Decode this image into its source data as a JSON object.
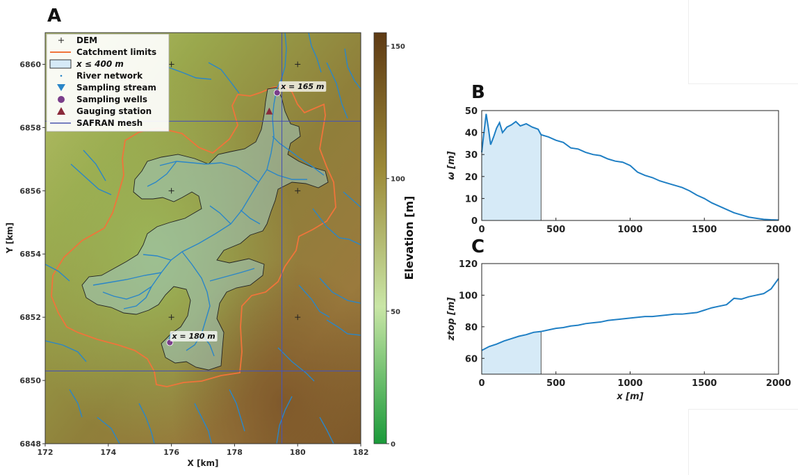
{
  "panels": {
    "a": "A",
    "b": "B",
    "c": "C"
  },
  "colors": {
    "catchment": "#f0743a",
    "river": "#2a86c8",
    "subcatch_fill": "#9fc6c0",
    "mesh": "#4a55b0",
    "wells": "#7a3e8a",
    "gauge": "#8a2a3a",
    "line": "#1f7fc4",
    "shade": "#d6eaf7"
  },
  "map": {
    "xlabel": "X [km]",
    "ylabel": "Y [km]",
    "xlim": [
      172,
      182
    ],
    "ylim": [
      6848,
      6861
    ],
    "xticks": [
      "172",
      "174",
      "176",
      "178",
      "180",
      "182"
    ],
    "yticks": [
      "6848",
      "6850",
      "6852",
      "6854",
      "6856",
      "6858",
      "6860"
    ],
    "legend": [
      {
        "label": "DEM",
        "icon": "plus-icon"
      },
      {
        "label": "Catchment limits",
        "icon": "orange-line-icon"
      },
      {
        "label": "x ≤ 400 m",
        "icon": "blue-box-icon"
      },
      {
        "label": "River network",
        "icon": "dot-icon"
      },
      {
        "label": "Sampling stream",
        "icon": "triangle-down-icon"
      },
      {
        "label": "Sampling wells",
        "icon": "circle-icon"
      },
      {
        "label": "Gauging station",
        "icon": "triangle-up-icon"
      },
      {
        "label": "SAFRAN mesh",
        "icon": "purple-line-icon"
      }
    ],
    "annotations": [
      {
        "text": "x = 165 m",
        "x": 179.45,
        "y": 6859.2
      },
      {
        "text": "x = 180 m",
        "x": 176.0,
        "y": 6851.3
      }
    ],
    "dem_points": [
      {
        "x": 176,
        "y": 6860
      },
      {
        "x": 180,
        "y": 6860
      },
      {
        "x": 176,
        "y": 6856
      },
      {
        "x": 180,
        "y": 6856
      },
      {
        "x": 176,
        "y": 6852
      },
      {
        "x": 180,
        "y": 6852
      }
    ],
    "mesh_lines": {
      "x": [
        179.5
      ],
      "y": [
        6858.2,
        6850.3
      ]
    },
    "wells": [
      {
        "x": 179.35,
        "y": 6859.1
      },
      {
        "x": 175.95,
        "y": 6851.2
      }
    ],
    "gauge": {
      "x": 179.1,
      "y": 6858.5
    },
    "colorbar": {
      "label": "Elevation [m]",
      "range": [
        0,
        155
      ],
      "ticks": [
        "0",
        "50",
        "100",
        "150"
      ],
      "colors": [
        "#1a9a3a",
        "#c9e6a6",
        "#9c8a38",
        "#5e3a14"
      ]
    }
  },
  "chart_data": [
    {
      "type": "line",
      "panel": "B",
      "ylabel": "ω [m]",
      "xlabel": "",
      "xlim": [
        0,
        2000
      ],
      "ylim": [
        0,
        50
      ],
      "xticks": [
        "0",
        "500",
        "1000",
        "1500",
        "2000"
      ],
      "yticks": [
        "0",
        "10",
        "20",
        "30",
        "40",
        "50"
      ],
      "shaded_x": [
        0,
        400
      ],
      "x": [
        0,
        15,
        30,
        45,
        60,
        80,
        100,
        120,
        140,
        170,
        200,
        230,
        260,
        300,
        340,
        380,
        400,
        450,
        500,
        550,
        600,
        650,
        700,
        750,
        800,
        850,
        900,
        950,
        1000,
        1050,
        1100,
        1150,
        1200,
        1250,
        1300,
        1350,
        1400,
        1450,
        1500,
        1550,
        1600,
        1650,
        1700,
        1750,
        1800,
        1850,
        1900,
        1950,
        2000
      ],
      "y": [
        31,
        40,
        48.5,
        42,
        34.5,
        38,
        42,
        44.5,
        40,
        42.5,
        43.5,
        45,
        43,
        44,
        42.5,
        41.5,
        39,
        38,
        36.5,
        35.5,
        33,
        32.5,
        31,
        30,
        29.5,
        28,
        27,
        26.5,
        25,
        22,
        20.5,
        19.5,
        18,
        17,
        16,
        15,
        13.5,
        11.5,
        10,
        8,
        6.5,
        5,
        3.5,
        2.5,
        1.5,
        1,
        0.5,
        0.3,
        0.2
      ]
    },
    {
      "type": "line",
      "panel": "C",
      "ylabel": "ztop [m]",
      "xlabel": "x [m]",
      "xlim": [
        0,
        2000
      ],
      "ylim": [
        50,
        120
      ],
      "xticks": [
        "0",
        "500",
        "1000",
        "1500",
        "2000"
      ],
      "yticks": [
        "60",
        "80",
        "100",
        "120"
      ],
      "shaded_x": [
        0,
        400
      ],
      "x": [
        0,
        50,
        100,
        150,
        200,
        250,
        300,
        350,
        400,
        450,
        500,
        550,
        600,
        650,
        700,
        750,
        800,
        850,
        900,
        950,
        1000,
        1050,
        1100,
        1150,
        1200,
        1250,
        1300,
        1350,
        1400,
        1450,
        1500,
        1550,
        1600,
        1650,
        1700,
        1750,
        1800,
        1850,
        1900,
        1950,
        2000
      ],
      "y": [
        65,
        67.5,
        69,
        71,
        72.5,
        74,
        75,
        76.5,
        77,
        78,
        79,
        79.5,
        80.5,
        81,
        82,
        82.5,
        83,
        84,
        84.5,
        85,
        85.5,
        86,
        86.5,
        86.5,
        87,
        87.5,
        88,
        88,
        88.5,
        89,
        90.5,
        92,
        93,
        94,
        98,
        97.5,
        99,
        100,
        101,
        104,
        110.5
      ]
    }
  ]
}
